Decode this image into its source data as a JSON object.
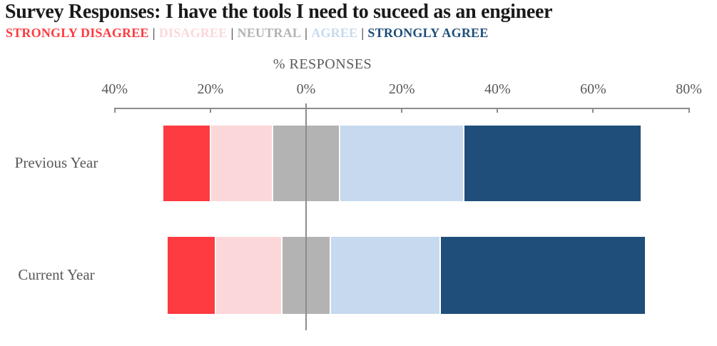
{
  "header": {
    "title": "Survey Responses: I have the tools I need to suceed as an engineer",
    "title_color": "#1a1a1a",
    "legend_separator": "|",
    "legend_separator_color": "#595959"
  },
  "chart_data": {
    "type": "bar",
    "subtype": "diverging-stacked-likert",
    "title": "Survey Responses: I have the tools I need to suceed as an engineer",
    "xlabel": "% RESPONSES",
    "orientation": "horizontal",
    "neutral_centered_on_zero": true,
    "axis": {
      "tick_labels": [
        "40%",
        "20%",
        "0%",
        "20%",
        "40%",
        "60%",
        "80%"
      ],
      "tick_values": [
        -40,
        -20,
        0,
        20,
        40,
        60,
        80
      ],
      "xlim": [
        -40,
        80
      ],
      "label_color": "#595959",
      "line_color": "#8c8c8c"
    },
    "categories": [
      "Previous Year",
      "Current Year"
    ],
    "category_label_color": "#595959",
    "series": [
      {
        "name": "STRONGLY DISAGREE",
        "color": "#fd3b40",
        "values": [
          10,
          10
        ]
      },
      {
        "name": "DISAGREE",
        "color": "#fcd7d9",
        "values": [
          13,
          14
        ]
      },
      {
        "name": "NEUTRAL",
        "color": "#b3b3b3",
        "values": [
          14,
          10
        ]
      },
      {
        "name": "AGREE",
        "color": "#c6d9ee",
        "values": [
          26,
          23
        ]
      },
      {
        "name": "STRONGLY AGREE",
        "color": "#1f4e7a",
        "values": [
          37,
          43
        ]
      }
    ],
    "legend_position": "top-left",
    "grid": false
  }
}
